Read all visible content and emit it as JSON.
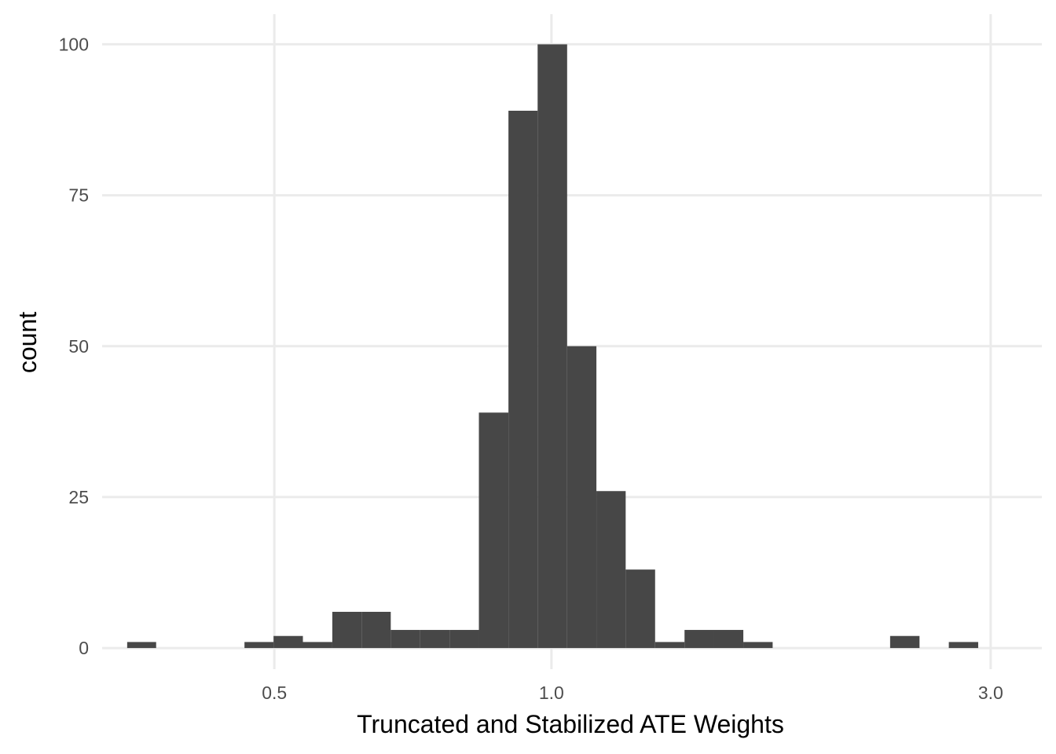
{
  "chart_data": {
    "type": "bar",
    "subtype": "histogram",
    "x_scale": "log10",
    "xlabel": "Truncated and Stabilized ATE Weights",
    "ylabel": "count",
    "x_ticks": [
      {
        "value": 0.5,
        "label": "0.5"
      },
      {
        "value": 1.0,
        "label": "1.0"
      },
      {
        "value": 3.0,
        "label": "3.0"
      }
    ],
    "y_ticks": [
      {
        "value": 0,
        "label": "0"
      },
      {
        "value": 25,
        "label": "25"
      },
      {
        "value": 50,
        "label": "50"
      },
      {
        "value": 75,
        "label": "75"
      },
      {
        "value": 100,
        "label": "100"
      }
    ],
    "xlim": [
      0.325,
      3.41
    ],
    "ylim": [
      -3.5,
      105
    ],
    "grid": true,
    "bar_color": "#474747",
    "grid_color": "#ebebeb",
    "bins": [
      {
        "x0": 0.346,
        "x1": 0.372,
        "count": 1
      },
      {
        "x0": 0.372,
        "x1": 0.4,
        "count": 0
      },
      {
        "x0": 0.4,
        "x1": 0.431,
        "count": 0
      },
      {
        "x0": 0.431,
        "x1": 0.464,
        "count": 0
      },
      {
        "x0": 0.464,
        "x1": 0.499,
        "count": 1
      },
      {
        "x0": 0.499,
        "x1": 0.537,
        "count": 2
      },
      {
        "x0": 0.537,
        "x1": 0.578,
        "count": 1
      },
      {
        "x0": 0.578,
        "x1": 0.622,
        "count": 6
      },
      {
        "x0": 0.622,
        "x1": 0.669,
        "count": 6
      },
      {
        "x0": 0.669,
        "x1": 0.72,
        "count": 3
      },
      {
        "x0": 0.72,
        "x1": 0.775,
        "count": 3
      },
      {
        "x0": 0.775,
        "x1": 0.834,
        "count": 3
      },
      {
        "x0": 0.834,
        "x1": 0.898,
        "count": 39
      },
      {
        "x0": 0.898,
        "x1": 0.966,
        "count": 89
      },
      {
        "x0": 0.966,
        "x1": 1.04,
        "count": 100
      },
      {
        "x0": 1.04,
        "x1": 1.119,
        "count": 50
      },
      {
        "x0": 1.119,
        "x1": 1.204,
        "count": 26
      },
      {
        "x0": 1.204,
        "x1": 1.296,
        "count": 13
      },
      {
        "x0": 1.296,
        "x1": 1.395,
        "count": 1
      },
      {
        "x0": 1.395,
        "x1": 1.501,
        "count": 3
      },
      {
        "x0": 1.501,
        "x1": 1.616,
        "count": 3
      },
      {
        "x0": 1.616,
        "x1": 1.739,
        "count": 1
      },
      {
        "x0": 1.739,
        "x1": 1.871,
        "count": 0
      },
      {
        "x0": 1.871,
        "x1": 2.014,
        "count": 0
      },
      {
        "x0": 2.014,
        "x1": 2.168,
        "count": 0
      },
      {
        "x0": 2.168,
        "x1": 2.333,
        "count": 0
      },
      {
        "x0": 2.333,
        "x1": 2.511,
        "count": 2
      },
      {
        "x0": 2.511,
        "x1": 2.702,
        "count": 0
      },
      {
        "x0": 2.702,
        "x1": 2.908,
        "count": 1
      }
    ]
  }
}
